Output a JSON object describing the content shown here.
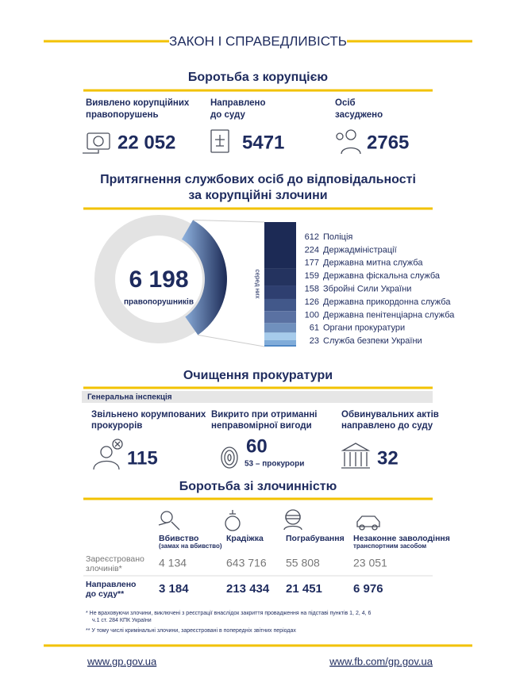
{
  "header": {
    "title": "ЗАКОН І СПРАВЕДЛИВІСТЬ"
  },
  "corruption": {
    "title": "Боротьба з корупцією",
    "stats": [
      {
        "label": [
          "Виявлено корупційних",
          "правопорушень"
        ],
        "value": "22 052"
      },
      {
        "label": [
          "Направлено",
          "до суду"
        ],
        "value": "5471"
      },
      {
        "label": [
          "Осіб",
          "засуджено"
        ],
        "value": "2765"
      }
    ]
  },
  "officials": {
    "title": [
      "Притягнення службових осіб до відповідальності",
      "за корупційні злочини"
    ],
    "total": "6 198",
    "total_label": "правопорушників",
    "breakdown_label": "серед них",
    "items": [
      {
        "value": 612,
        "name": "Поліція",
        "color": "#1c2a55"
      },
      {
        "value": 224,
        "name": "Держадміністрації",
        "color": "#24335f"
      },
      {
        "value": 177,
        "name": "Державна митна служба",
        "color": "#2e3f70"
      },
      {
        "value": 159,
        "name": "Державна фіскальна служба",
        "color": "#42588a"
      },
      {
        "value": 158,
        "name": "Збройні Сили України",
        "color": "#5a71a2"
      },
      {
        "value": 126,
        "name": "Державна прикордонна служба",
        "color": "#7090bd"
      },
      {
        "value": 100,
        "name": "Державна пенітенціарна служба",
        "color": "#a6cbeb"
      },
      {
        "value": 61,
        "name": "Органи прокуратури",
        "color": "#80acd9"
      },
      {
        "value": 23,
        "name": "Служба безпеки України",
        "color": "#4f87c5"
      }
    ]
  },
  "prosecution": {
    "title": "Очищення прокуратури",
    "subtitle": "Генеральна інспекція",
    "stats": [
      {
        "label": [
          "Звільнено корумпованих",
          "прокурорів"
        ],
        "value": "115"
      },
      {
        "label": [
          "Викрито при отриманні",
          "неправомірної вигоди"
        ],
        "value": "60",
        "note": "53 – прокурори"
      },
      {
        "label": [
          "Обвинувальних актів",
          "направлено до суду"
        ],
        "value": "32"
      }
    ]
  },
  "crime": {
    "title": "Боротьба зі злочинністю",
    "columns": [
      [
        "Вбивство",
        "(замах на вбивство)"
      ],
      [
        "Крадіжка"
      ],
      [
        "Пограбування"
      ],
      [
        "Незаконне заволодіння",
        "транспортним засобом"
      ]
    ],
    "rows": [
      {
        "label": [
          "Зареєстровано",
          "злочинів*"
        ],
        "values": [
          "4 134",
          "643 716",
          "55 808",
          "23 051"
        ]
      },
      {
        "label": [
          "Направлено",
          "до суду**"
        ],
        "values": [
          "3 184",
          "213 434",
          "21 451",
          "6 976"
        ]
      }
    ]
  },
  "footnotes": [
    "*    Не враховуючи злочини, виключені з реєстрації внаслідок закриття провадження на підставі пунктів 1, 2, 4, 6",
    "ч.1 ст. 284 КПК України",
    "** У тому числі кримінальні злочини, зареєстровані в попередніх звітних періодах"
  ],
  "footer": {
    "links": [
      "www.gp.gov.ua",
      "www.fb.com/gp.gov.ua"
    ]
  }
}
